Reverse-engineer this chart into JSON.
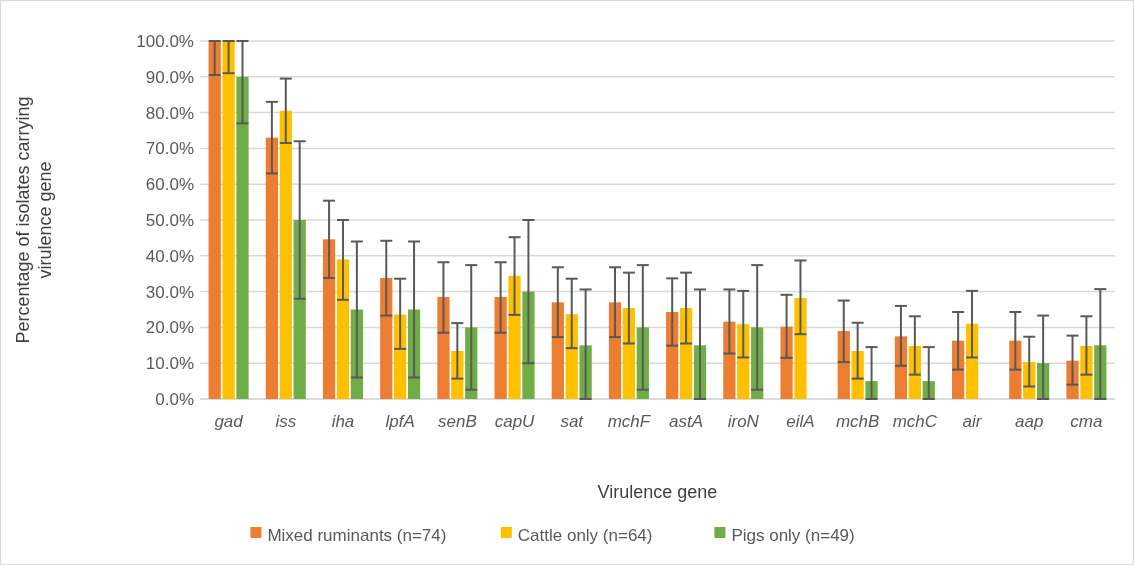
{
  "chart_data": {
    "type": "bar",
    "xlabel": "Virulence gene",
    "ylabel": "Percentage of isolates carrying virulence gene",
    "categories": [
      "gad",
      "iss",
      "iha",
      "lpfA",
      "senB",
      "capU",
      "sat",
      "mchF",
      "astA",
      "iroN",
      "eilA",
      "mchB",
      "mchC",
      "air",
      "aap",
      "cma"
    ],
    "series": [
      {
        "name": "Mixed ruminants (n=74)",
        "color": "#ed7d31",
        "values": [
          100,
          73,
          44.6,
          33.8,
          28.5,
          28.5,
          27,
          27,
          24.3,
          21.6,
          20.2,
          19,
          17.5,
          16.3,
          16.3,
          10.7
        ],
        "errors": [
          [
            90.5,
            100
          ],
          [
            63,
            83
          ],
          [
            33.8,
            55.4
          ],
          [
            23.3,
            44.2
          ],
          [
            18.5,
            38.2
          ],
          [
            18.5,
            38.2
          ],
          [
            17.3,
            36.8
          ],
          [
            17.3,
            36.8
          ],
          [
            14.9,
            33.7
          ],
          [
            12.7,
            30.6
          ],
          [
            11.5,
            29.1
          ],
          [
            10.3,
            27.5
          ],
          [
            9.3,
            26
          ],
          [
            8.2,
            24.3
          ],
          [
            8.2,
            24.3
          ],
          [
            4,
            17.7
          ]
        ]
      },
      {
        "name": "Cattle only (n=64)",
        "color": "#ffc000",
        "values": [
          100,
          80.5,
          39,
          23.6,
          13.4,
          34.4,
          23.7,
          25.4,
          25.4,
          20.9,
          28.2,
          13.4,
          14.8,
          21,
          10.3,
          14.8
        ],
        "errors": [
          [
            91,
            100
          ],
          [
            71.5,
            89.5
          ],
          [
            27.7,
            50
          ],
          [
            14,
            33.6
          ],
          [
            5.7,
            21.2
          ],
          [
            23.5,
            45.2
          ],
          [
            14.2,
            33.6
          ],
          [
            15.5,
            35.3
          ],
          [
            15.5,
            35.3
          ],
          [
            11.6,
            30.2
          ],
          [
            18.1,
            38.7
          ],
          [
            5.7,
            21.3
          ],
          [
            6.8,
            23.1
          ],
          [
            11.6,
            30.2
          ],
          [
            3.5,
            17.4
          ],
          [
            6.8,
            23.1
          ]
        ]
      },
      {
        "name": "Pigs only (n=49)",
        "color": "#70ad47",
        "values": [
          90,
          50,
          25,
          25,
          20,
          30,
          15,
          20,
          15,
          20,
          null,
          5,
          5,
          null,
          10,
          15
        ],
        "errors": [
          [
            77,
            100
          ],
          [
            28,
            72
          ],
          [
            6,
            44
          ],
          [
            6,
            44
          ],
          [
            2.6,
            37.4
          ],
          [
            10,
            50
          ],
          [
            0,
            30.6
          ],
          [
            2.6,
            37.4
          ],
          [
            0,
            30.6
          ],
          [
            2.6,
            37.4
          ],
          null,
          [
            0,
            14.5
          ],
          [
            0,
            14.5
          ],
          null,
          [
            0,
            23.3
          ],
          [
            0,
            30.7
          ]
        ]
      }
    ],
    "ylim": [
      0,
      100
    ],
    "yticks": [
      {
        "value": 0,
        "label": "0.0%"
      },
      {
        "value": 10,
        "label": "10.0%"
      },
      {
        "value": 20,
        "label": "20.0%"
      },
      {
        "value": 30,
        "label": "30.0%"
      },
      {
        "value": 40,
        "label": "40.0%"
      },
      {
        "value": 50,
        "label": "50.0%"
      },
      {
        "value": 60,
        "label": "60.0%"
      },
      {
        "value": 70,
        "label": "70.0%"
      },
      {
        "value": 80,
        "label": "80.0%"
      },
      {
        "value": 90,
        "label": "90.0%"
      },
      {
        "value": 100,
        "label": "100.0%"
      }
    ],
    "grid": "y",
    "legend": "bottom"
  }
}
